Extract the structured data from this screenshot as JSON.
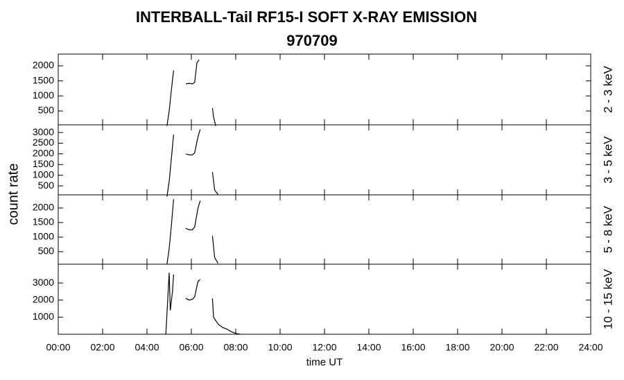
{
  "chart_data": [
    {
      "type": "line",
      "title": "INTERBALL-Tail RF15-I SOFT X-RAY EMISSION",
      "subtitle": "970709",
      "y_label": "count rate",
      "panel_label": "2 - 3 keV",
      "x": [
        4.9,
        5.0,
        5.1,
        5.2,
        5.5,
        5.75,
        5.9,
        6.05,
        6.15,
        6.25,
        6.35,
        6.8,
        6.95,
        7.0,
        7.1
      ],
      "values": [
        0,
        500,
        1200,
        1850,
        null,
        1400,
        1420,
        1400,
        1450,
        2100,
        2200,
        null,
        600,
        300,
        0
      ],
      "xlim": [
        0,
        24
      ],
      "xticks": [
        0,
        2,
        4,
        6,
        8,
        10,
        12,
        14,
        16,
        18,
        20,
        22,
        24
      ],
      "ylim": [
        40,
        2390
      ],
      "yticks": [
        500,
        1000,
        1500,
        2000
      ],
      "color": "#000000"
    },
    {
      "type": "line",
      "panel_label": "3 - 5 keV",
      "x": [
        4.9,
        5.0,
        5.1,
        5.2,
        5.5,
        5.75,
        5.9,
        6.05,
        6.15,
        6.3,
        6.4,
        6.8,
        6.95,
        7.05,
        7.2
      ],
      "values": [
        0,
        700,
        1800,
        2900,
        null,
        2000,
        1950,
        1950,
        2050,
        2800,
        3150,
        null,
        1150,
        300,
        100
      ],
      "xlim": [
        0,
        24
      ],
      "xticks": [
        0,
        2,
        4,
        6,
        8,
        10,
        12,
        14,
        16,
        18,
        20,
        22,
        24
      ],
      "ylim": [
        80,
        3360
      ],
      "yticks": [
        500,
        1000,
        1500,
        2000,
        2500,
        3000
      ],
      "color": "#000000"
    },
    {
      "type": "line",
      "panel_label": "5 - 8 keV",
      "x": [
        4.9,
        5.0,
        5.1,
        5.2,
        5.5,
        5.75,
        5.9,
        6.05,
        6.15,
        6.3,
        6.4,
        6.8,
        6.95,
        7.05,
        7.2
      ],
      "values": [
        70,
        600,
        1400,
        2300,
        null,
        1300,
        1250,
        1250,
        1350,
        2000,
        2250,
        null,
        1050,
        300,
        100
      ],
      "xlim": [
        0,
        24
      ],
      "xticks": [
        0,
        2,
        4,
        6,
        8,
        10,
        12,
        14,
        16,
        18,
        20,
        22,
        24
      ],
      "ylim": [
        70,
        2450
      ],
      "yticks": [
        500,
        1000,
        1500,
        2000
      ],
      "color": "#000000"
    },
    {
      "type": "line",
      "panel_label": "10 - 15 keV",
      "x_label": "time UT",
      "x": [
        4.85,
        5.0,
        5.05,
        5.15,
        5.2,
        5.5,
        5.75,
        5.9,
        6.05,
        6.15,
        6.3,
        6.4,
        6.8,
        6.95,
        7.0,
        7.2,
        7.4,
        7.6,
        7.8,
        8.0,
        8.2
      ],
      "values": [
        0,
        3600,
        1400,
        2500,
        3500,
        null,
        2100,
        2000,
        2050,
        2200,
        3100,
        3200,
        null,
        2100,
        1000,
        600,
        400,
        300,
        150,
        50,
        0
      ],
      "xlim": [
        0,
        24
      ],
      "xticks": [
        {
          "value": 0,
          "label": "00:00"
        },
        {
          "value": 2,
          "label": "02:00"
        },
        {
          "value": 4,
          "label": "04:00"
        },
        {
          "value": 6,
          "label": "06:00"
        },
        {
          "value": 8,
          "label": "08:00"
        },
        {
          "value": 10,
          "label": "10:00"
        },
        {
          "value": 12,
          "label": "12:00"
        },
        {
          "value": 14,
          "label": "14:00"
        },
        {
          "value": 16,
          "label": "16:00"
        },
        {
          "value": 18,
          "label": "18:00"
        },
        {
          "value": 20,
          "label": "20:00"
        },
        {
          "value": 22,
          "label": "22:00"
        },
        {
          "value": 24,
          "label": "24:00"
        }
      ],
      "ylim": [
        0,
        4100
      ],
      "yticks": [
        1000,
        2000,
        3000
      ],
      "color": "#000000"
    }
  ]
}
